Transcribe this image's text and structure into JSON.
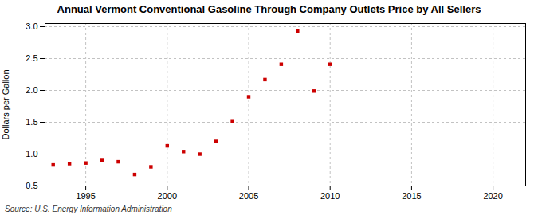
{
  "chart_data": {
    "type": "scatter",
    "title": "Annual Vermont Conventional Gasoline Through Company Outlets Price by All Sellers",
    "ylabel": "Dollars per Gallon",
    "source": "Source: U.S. Energy Information Administration",
    "x": [
      1993,
      1994,
      1995,
      1996,
      1997,
      1998,
      1999,
      2000,
      2001,
      2002,
      2003,
      2004,
      2005,
      2006,
      2007,
      2008,
      2009,
      2010
    ],
    "values": [
      0.83,
      0.85,
      0.86,
      0.9,
      0.88,
      0.68,
      0.8,
      1.13,
      1.04,
      1.0,
      1.2,
      1.51,
      1.9,
      2.17,
      2.41,
      2.93,
      1.99,
      2.41
    ],
    "color": "#cc0000",
    "marker": "square",
    "xlim": [
      1992.5,
      2022
    ],
    "xticks": [
      1995,
      2000,
      2005,
      2010,
      2015,
      2020
    ],
    "ylim": [
      0.5,
      3.05
    ],
    "yticks": [
      0.5,
      {
        "value": 1,
        "label": "1.0"
      },
      1.5,
      {
        "value": 2,
        "label": "2.0"
      },
      2.5,
      {
        "value": 3,
        "label": "3.0"
      }
    ],
    "grid": true
  }
}
